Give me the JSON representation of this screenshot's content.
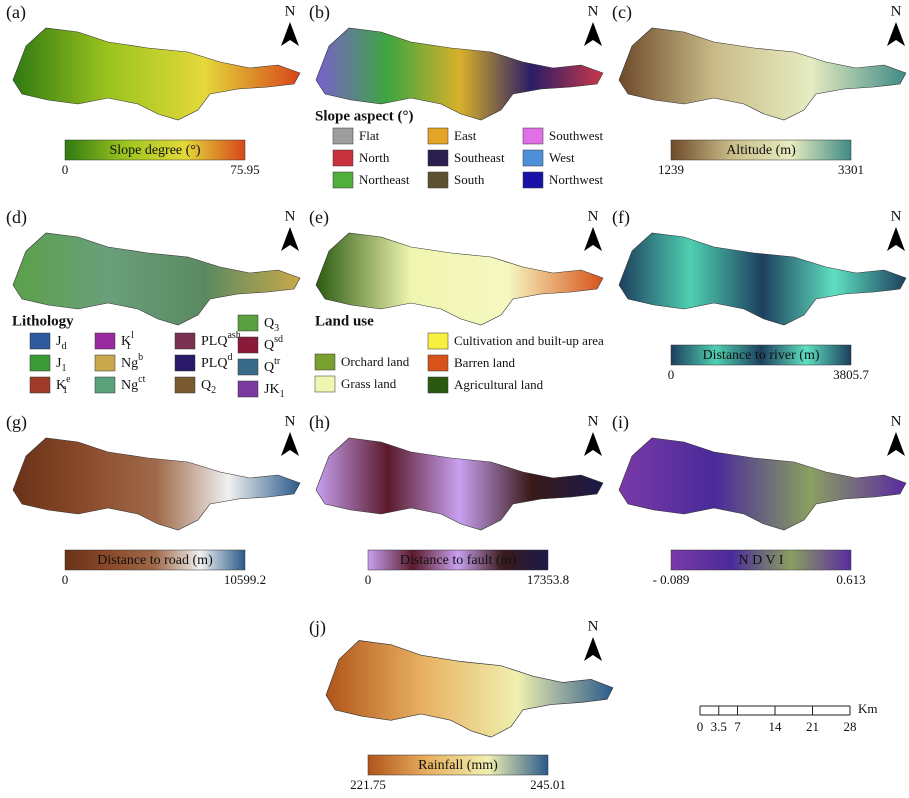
{
  "panels": [
    {
      "label": "(a)",
      "north": "N",
      "gradient": [
        "#2f7a12",
        "#9cc41e",
        "#e3d93a",
        "#d8451a"
      ],
      "colorbar": {
        "title": "Slope degree (°)",
        "min": "0",
        "max": "75.95"
      }
    },
    {
      "label": "(b)",
      "north": "N",
      "gradient": [
        "#7a5fd0",
        "#3da640",
        "#d8b12a",
        "#2a1d66",
        "#c9384a"
      ],
      "legend": {
        "title": "Slope aspect (°)",
        "columns": [
          [
            {
              "name": "Flat",
              "color": "#9e9e9e"
            },
            {
              "name": "North",
              "color": "#c8323c"
            },
            {
              "name": "Northeast",
              "color": "#4fae3c"
            }
          ],
          [
            {
              "name": "East",
              "color": "#e3a527"
            },
            {
              "name": "Southeast",
              "color": "#2a1f4e"
            },
            {
              "name": "South",
              "color": "#5c5232"
            }
          ],
          [
            {
              "name": "Southwest",
              "color": "#e070e6"
            },
            {
              "name": "West",
              "color": "#4f8fd8"
            },
            {
              "name": "Northwest",
              "color": "#1a12a8"
            }
          ]
        ]
      }
    },
    {
      "label": "(c)",
      "north": "N",
      "gradient": [
        "#6e4a2a",
        "#c9bb88",
        "#e6ecc0",
        "#3f8a86"
      ],
      "colorbar": {
        "title": "Altitude (m)",
        "min": "1239",
        "max": "3301"
      }
    },
    {
      "label": "(d)",
      "north": "N",
      "gradient": [
        "#5aa04a",
        "#6a9f7c",
        "#5a8a60",
        "#c8a84a"
      ],
      "legend": {
        "title": "Lithology",
        "columns": [
          [
            {
              "base": "J",
              "sub": "d",
              "color": "#2f5aa0"
            },
            {
              "base": "J",
              "sub": "1",
              "color": "#3a9a36"
            },
            {
              "base": "K",
              "sup": "e",
              "sub": "1",
              "color": "#a03a2a"
            }
          ],
          [
            {
              "base": "K",
              "sup": "l",
              "sub": "1",
              "color": "#9a2aa0"
            },
            {
              "base": "Ng",
              "sup": "b",
              "color": "#c8a84a"
            },
            {
              "base": "Ng",
              "sup": "ct",
              "color": "#5aa07a"
            }
          ],
          [
            {
              "base": "PLQ",
              "sup": "ash",
              "color": "#7a3050"
            },
            {
              "base": "PLQ",
              "sup": "d",
              "color": "#2a1a6a"
            },
            {
              "base": "Q",
              "sub": "2",
              "color": "#7a5a30"
            }
          ],
          [
            {
              "base": "Q",
              "sub": "3",
              "color": "#5aa040"
            },
            {
              "base": "Q",
              "sup": "sd",
              "color": "#8a1a3a"
            },
            {
              "base": "Q",
              "sup": "tr",
              "color": "#3a6a8a"
            },
            {
              "base": "JK",
              "sub": "1",
              "color": "#7a3aa0"
            }
          ]
        ]
      }
    },
    {
      "label": "(e)",
      "north": "N",
      "gradient": [
        "#2a5a10",
        "#f0f5b0",
        "#f5f8c0",
        "#d8521a"
      ],
      "legend": {
        "title": "Land use",
        "columns": [
          [
            {
              "name": "Orchard land",
              "color": "#7aa030"
            },
            {
              "name": "Grass land",
              "color": "#f0f5b0"
            }
          ],
          [
            {
              "name": "Cultivation and built-up area",
              "color": "#f8f040"
            },
            {
              "name": "Barren land",
              "color": "#d8521a"
            },
            {
              "name": "Agricultural land",
              "color": "#2a5a10"
            }
          ]
        ]
      }
    },
    {
      "label": "(f)",
      "north": "N",
      "gradient": [
        "#1d3f5e",
        "#4fd0b0",
        "#1d3f5e",
        "#5fe0c0",
        "#1d3f5e"
      ],
      "colorbar": {
        "title": "Distance to river (m)",
        "min": "0",
        "max": "3805.7"
      }
    },
    {
      "label": "(g)",
      "north": "N",
      "gradient": [
        "#6a3218",
        "#8a4a2a",
        "#a06a4a",
        "#f0f0f0",
        "#2a5a8a"
      ],
      "colorbar": {
        "title": "Distance to road (m)",
        "min": "0",
        "max": "10599.2"
      }
    },
    {
      "label": "(h)",
      "north": "N",
      "gradient": [
        "#c8a0f0",
        "#5a1a2a",
        "#c8a0f0",
        "#3a1a1a",
        "#1a1a4a"
      ],
      "colorbar": {
        "title": "Distance to fault (m)",
        "min": "0",
        "max": "17353.8"
      }
    },
    {
      "label": "(i)",
      "north": "N",
      "gradient": [
        "#7a3aa8",
        "#4a2a9a",
        "#8aa060",
        "#5a2aa0"
      ],
      "colorbar": {
        "title": "N D V I",
        "min": "- 0.089",
        "max": "0.613"
      }
    },
    {
      "label": "(j)",
      "north": "N",
      "gradient": [
        "#b0541a",
        "#e8b060",
        "#f0f0b0",
        "#2a5a8a"
      ],
      "colorbar": {
        "title": "Rainfall (mm)",
        "min": "221.75",
        "max": "245.01"
      }
    }
  ],
  "scale_bar": {
    "ticks": [
      "0",
      "3.5",
      "7",
      "14",
      "21",
      "28"
    ],
    "unit": "Km"
  }
}
